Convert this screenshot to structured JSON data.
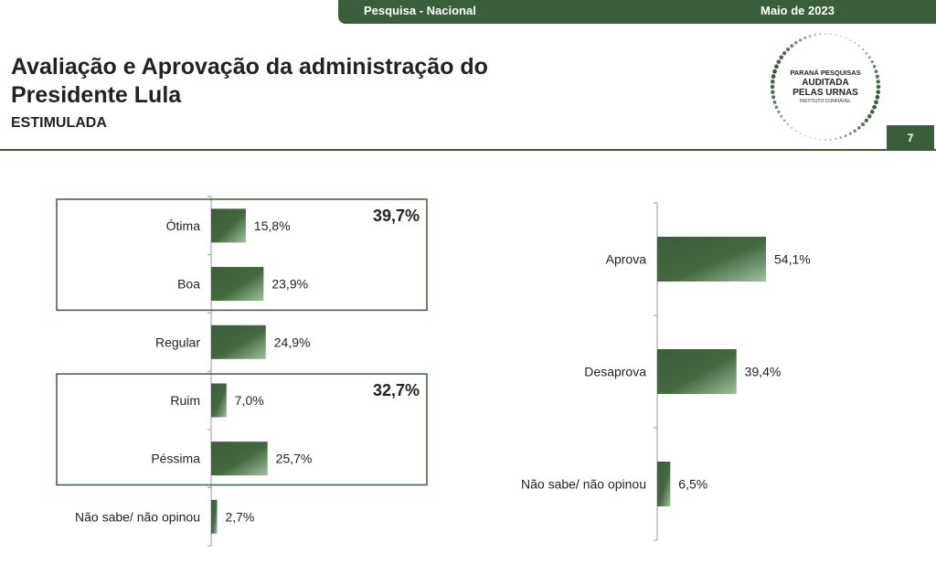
{
  "header": {
    "survey": "Pesquisa - Nacional",
    "date": "Maio de 2023",
    "page_number": "7"
  },
  "title": "Avaliação e Aprovação da administração do Presidente Lula",
  "subtitle": "ESTIMULADA",
  "logo": {
    "line1": "PARANÁ PESQUISAS",
    "line2": "AUDITADA",
    "line3": "PELAS URNAS",
    "line4": "INSTITUTO CONFIÁVEL"
  },
  "colors": {
    "brand": "#3a5e3a",
    "bar_light": "#9fc09f"
  },
  "chart_data": [
    {
      "type": "bar",
      "orientation": "horizontal",
      "categories": [
        "Ótima",
        "Boa",
        "Regular",
        "Ruim",
        "Péssima",
        "Não sabe/ não opinou"
      ],
      "values": [
        15.8,
        23.9,
        24.9,
        7.0,
        25.7,
        2.7
      ],
      "labels": [
        "15,8%",
        "23,9%",
        "24,9%",
        "7,0%",
        "25,7%",
        "2,7%"
      ],
      "unit": "%",
      "groups": [
        {
          "categories": [
            "Ótima",
            "Boa"
          ],
          "total_label": "39,7%"
        },
        {
          "categories": [
            "Ruim",
            "Péssima"
          ],
          "total_label": "32,7%"
        }
      ],
      "grid": false,
      "legend": "none"
    },
    {
      "type": "bar",
      "orientation": "horizontal",
      "categories": [
        "Aprova",
        "Desaprova",
        "Não sabe/ não opinou"
      ],
      "values": [
        54.1,
        39.4,
        6.5
      ],
      "labels": [
        "54,1%",
        "39,4%",
        "6,5%"
      ],
      "unit": "%",
      "grid": false,
      "legend": "none"
    }
  ]
}
